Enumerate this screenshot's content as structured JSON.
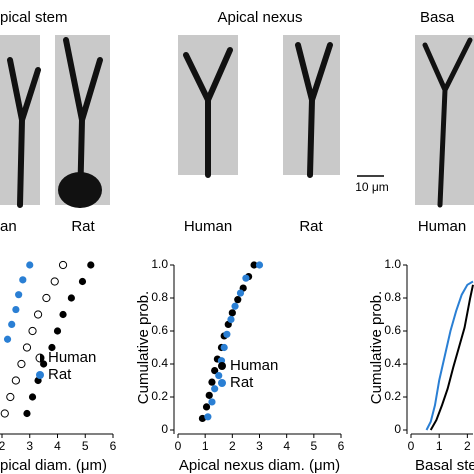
{
  "panels": {
    "titles": [
      "pical stem",
      "Apical nexus",
      "Basa"
    ],
    "labels": [
      "an",
      "Rat",
      "Human",
      "Rat",
      "Human"
    ],
    "scale_bar": "10 μm"
  },
  "chart_data": [
    {
      "type": "scatter",
      "xlabel": "pical diam. (μm)",
      "xlim": [
        2,
        6
      ],
      "xticks": [
        2,
        3,
        4,
        5,
        6
      ],
      "ylim": [
        0,
        1
      ],
      "series": [
        {
          "name": "Human",
          "color": "#000000",
          "x": [
            2.9,
            3.1,
            3.3,
            3.5,
            3.8,
            4.0,
            4.2,
            4.5,
            4.9,
            5.2
          ],
          "values": [
            0.1,
            0.2,
            0.3,
            0.4,
            0.5,
            0.6,
            0.7,
            0.8,
            0.9,
            1.0
          ]
        },
        {
          "color": "#ffffff",
          "x": [
            2.1,
            2.3,
            2.5,
            2.7,
            2.9,
            3.1,
            3.3,
            3.6,
            3.9,
            4.2
          ],
          "values": [
            0.1,
            0.2,
            0.3,
            0.4,
            0.5,
            0.6,
            0.7,
            0.8,
            0.9,
            1.0
          ]
        },
        {
          "name": "Rat",
          "color": "#2a7fd4",
          "x": [
            2.2,
            2.35,
            2.5,
            2.6,
            2.75,
            3.0
          ],
          "values": [
            0.55,
            0.64,
            0.73,
            0.82,
            0.91,
            1.0
          ]
        }
      ]
    },
    {
      "type": "scatter",
      "xlabel": "Apical nexus diam. (μm)",
      "ylabel": "Cumulative prob.",
      "xlim": [
        0,
        6
      ],
      "xticks": [
        0,
        1,
        2,
        3,
        4,
        5,
        6
      ],
      "ylim": [
        0,
        1
      ],
      "yticks": [
        0,
        {
          "value": 0.2,
          "label": "0.2"
        },
        {
          "value": 0.4,
          "label": "0.4"
        },
        {
          "value": 0.6,
          "label": "0.6"
        },
        {
          "value": 0.8,
          "label": "0.8"
        },
        {
          "value": 1,
          "label": "1.0"
        }
      ],
      "series": [
        {
          "name": "Human",
          "color": "#000000",
          "x": [
            0.9,
            1.05,
            1.15,
            1.25,
            1.35,
            1.45,
            1.6,
            1.7,
            1.85,
            2.0,
            2.2,
            2.4,
            2.6,
            2.8
          ],
          "values": [
            0.07,
            0.14,
            0.21,
            0.29,
            0.36,
            0.43,
            0.5,
            0.57,
            0.64,
            0.71,
            0.79,
            0.86,
            0.93,
            1.0
          ]
        },
        {
          "name": "Rat",
          "color": "#2a7fd4",
          "x": [
            1.1,
            1.25,
            1.35,
            1.5,
            1.6,
            1.7,
            1.8,
            1.95,
            2.1,
            2.3,
            2.5,
            3.0
          ],
          "values": [
            0.08,
            0.17,
            0.25,
            0.33,
            0.42,
            0.5,
            0.58,
            0.67,
            0.75,
            0.83,
            0.92,
            1.0
          ]
        }
      ]
    },
    {
      "type": "line",
      "xlabel": "Basal ste",
      "ylabel": "Cumulative prob.",
      "xlim": [
        0,
        2.2
      ],
      "xticks": [
        0,
        1,
        2
      ],
      "ylim": [
        0,
        1
      ],
      "yticks": [
        0,
        {
          "value": 0.2,
          "label": "0.2"
        },
        {
          "value": 0.4,
          "label": "0.4"
        },
        {
          "value": 0.6,
          "label": "0.6"
        },
        {
          "value": 0.8,
          "label": "0.8"
        },
        {
          "value": 1,
          "label": "1.0"
        }
      ],
      "series": [
        {
          "color": "#000000",
          "x": [
            0.7,
            0.9,
            1.1,
            1.3,
            1.5,
            1.7,
            1.9,
            2.1,
            2.2
          ],
          "values": [
            0,
            0.06,
            0.15,
            0.25,
            0.38,
            0.5,
            0.62,
            0.8,
            0.88
          ]
        },
        {
          "color": "#2a7fd4",
          "x": [
            0.55,
            0.7,
            0.85,
            1.0,
            1.2,
            1.4,
            1.6,
            1.8,
            2.0,
            2.2
          ],
          "values": [
            0,
            0.05,
            0.15,
            0.3,
            0.45,
            0.6,
            0.72,
            0.82,
            0.88,
            0.9
          ]
        }
      ]
    }
  ]
}
